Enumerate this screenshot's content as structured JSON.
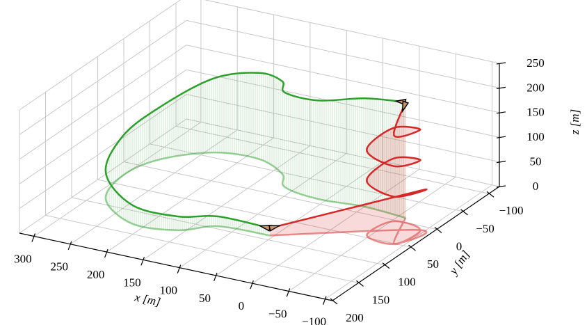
{
  "chart_data": {
    "type": "line3d",
    "xlabel": "x [m]",
    "ylabel": "y [m]",
    "zlabel": "z [m]",
    "xlim": [
      -110,
      320
    ],
    "ylim": [
      -120,
      200
    ],
    "zlim": [
      0,
      250
    ],
    "xticks": [
      {
        "value": -100,
        "label": "−100"
      },
      {
        "value": -50,
        "label": "−50"
      },
      0,
      50,
      100,
      150,
      200,
      250,
      300
    ],
    "yticks": [
      {
        "value": -100,
        "label": "−100"
      },
      {
        "value": -50,
        "label": "−50"
      },
      0,
      50,
      100,
      150,
      200
    ],
    "zticks": [
      0,
      50,
      100,
      150,
      200,
      250
    ],
    "grid": true,
    "series": [
      {
        "color": "#2ca02c",
        "x": [
          55,
          123,
          159,
          217,
          281,
          300,
          287,
          241,
          183,
          136,
          113,
          60,
          0,
          -60
        ],
        "y": [
          90,
          94,
          121,
          128,
          89,
          30,
          -20,
          -61,
          -68,
          -47,
          -20,
          -10,
          -15,
          -10
        ],
        "z": [
          15,
          20,
          28,
          38,
          55,
          80,
          105,
          150,
          175,
          188,
          192,
          200,
          220,
          235
        ]
      },
      {
        "color": "#d62728",
        "x": [
          55,
          -94,
          -88,
          -46,
          -52,
          -94,
          -88,
          -46,
          -52,
          -94,
          -88,
          -60
        ],
        "y": [
          90,
          9,
          51,
          45,
          3,
          9,
          51,
          45,
          3,
          9,
          51,
          -10
        ],
        "z": [
          15,
          80,
          96,
          111,
          127,
          142,
          158,
          173,
          189,
          204,
          220,
          235
        ]
      }
    ]
  }
}
